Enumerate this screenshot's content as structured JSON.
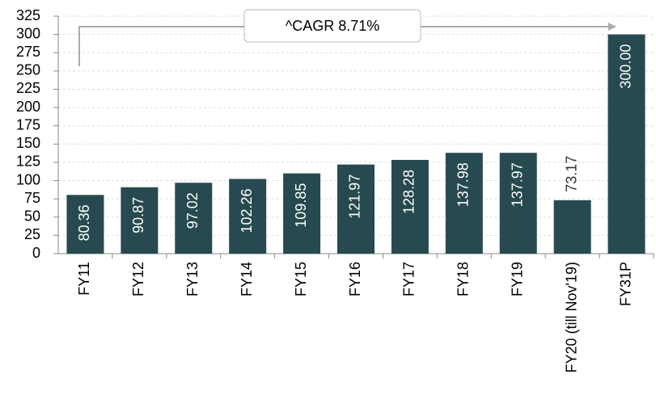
{
  "chart_data": {
    "type": "bar",
    "categories": [
      "FY11",
      "FY12",
      "FY13",
      "FY14",
      "FY15",
      "FY16",
      "FY17",
      "FY18",
      "FY19",
      "FY20 (till Nov'19)",
      "FY31P"
    ],
    "values": [
      80.36,
      90.87,
      97.02,
      102.26,
      109.85,
      121.97,
      128.28,
      137.98,
      137.97,
      73.17,
      300
    ],
    "value_labels": [
      "80.36",
      "90.87",
      "97.02",
      "102.26",
      "109.85",
      "121.97",
      "128.28",
      "137.98",
      "137.97",
      "73.17",
      "300.00"
    ],
    "color": "#264a4f",
    "ylim": [
      0,
      325
    ],
    "yticks": [
      0,
      25,
      50,
      75,
      100,
      125,
      150,
      175,
      200,
      225,
      250,
      275,
      300,
      325
    ],
    "grid": true,
    "annotation": "^CAGR 8.71%"
  }
}
